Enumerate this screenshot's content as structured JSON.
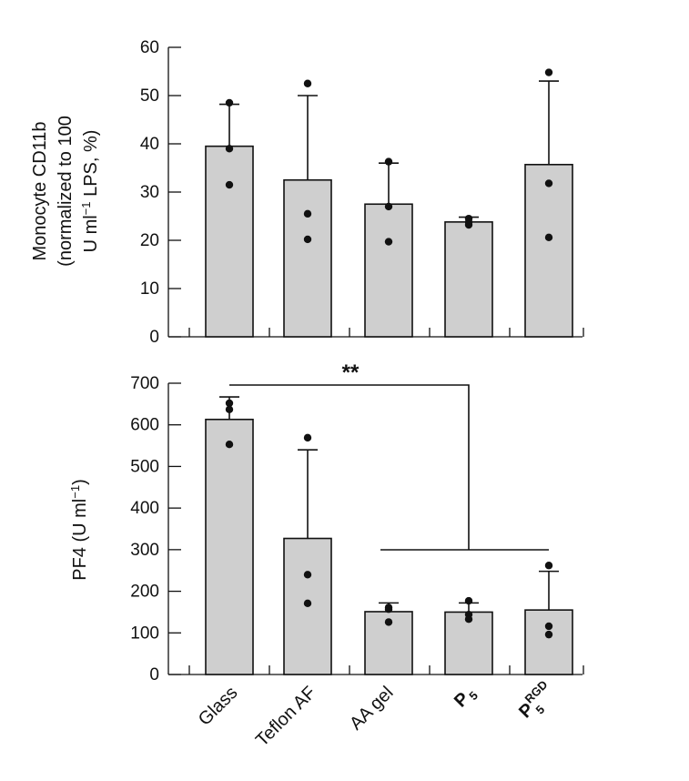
{
  "chart_data": [
    {
      "type": "bar",
      "ylabel_lines": [
        "Monocyte CD11b",
        "(normalized to 100",
        "U ml",
        "−1",
        " LPS, %)"
      ],
      "ylim": [
        0,
        60
      ],
      "yticks": [
        0,
        10,
        20,
        30,
        40,
        50,
        60
      ],
      "categories": [
        "Glass",
        "Teflon AF",
        "AA gel",
        "P5",
        "P5RGD"
      ],
      "values": [
        39.5,
        32.5,
        27.5,
        23.8,
        35.7
      ],
      "error_upper": [
        48.2,
        50.0,
        36.0,
        24.8,
        53.0
      ],
      "points": [
        [
          48.5,
          39.0,
          31.5
        ],
        [
          52.5,
          25.5,
          20.2
        ],
        [
          36.3,
          27.0,
          19.7
        ],
        [
          24.5,
          23.8,
          23.2
        ],
        [
          54.8,
          31.8,
          20.6
        ]
      ],
      "bar_color": "#cfcfcf"
    },
    {
      "type": "bar",
      "ylabel_main": "PF4 (U ml",
      "ylabel_sup": "−1",
      "ylabel_end": ")",
      "ylim": [
        0,
        700
      ],
      "yticks": [
        0,
        100,
        200,
        300,
        400,
        500,
        600,
        700
      ],
      "categories": [
        "Glass",
        "Teflon AF",
        "AA gel",
        "P5",
        "P5RGD"
      ],
      "values": [
        613,
        327,
        151,
        150,
        155
      ],
      "error_upper": [
        667,
        540,
        172,
        172,
        248
      ],
      "points": [
        [
          652,
          637,
          553
        ],
        [
          569,
          240,
          171
        ],
        [
          161,
          157,
          126
        ],
        [
          177,
          144,
          133
        ],
        [
          262,
          116,
          96
        ]
      ],
      "significance": "**",
      "bar_color": "#cfcfcf"
    }
  ],
  "x_labels": {
    "glass": "Glass",
    "teflon": "Teflon AF",
    "aagel": "AA gel",
    "p5_main": "P",
    "p5_sub": "5",
    "p5rgd_main": "P",
    "p5rgd_sup": "RGD",
    "p5rgd_sub": "5"
  }
}
